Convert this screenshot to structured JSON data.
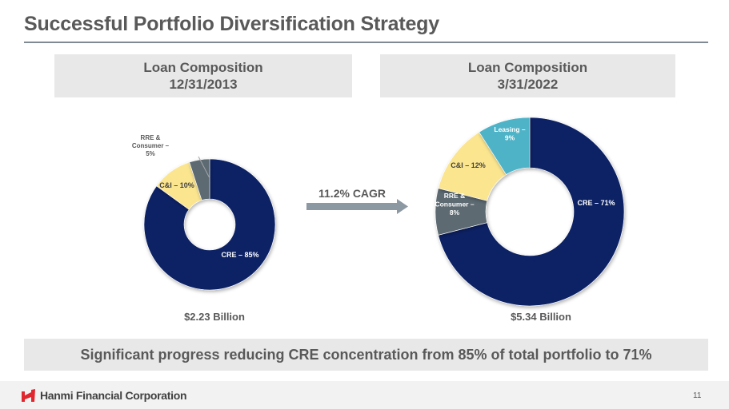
{
  "title": "Successful Portfolio Diversification Strategy",
  "panels": {
    "left": {
      "header_line1": "Loan Composition",
      "header_line2": "12/31/2013",
      "total": "$2.23 Billion"
    },
    "right": {
      "header_line1": "Loan Composition",
      "header_line2": "3/31/2022",
      "total": "$5.34 Billion"
    }
  },
  "cagr_label": "11.2% CAGR",
  "banner": "Significant progress reducing CRE concentration from 85% of total portfolio to 71%",
  "footer": {
    "company": "Hanmi Financial Corporation",
    "page_number": "11"
  },
  "colors": {
    "cre": "#0b2265",
    "ci": "#fbe58f",
    "rre": "#5d6a72",
    "leasing": "#4fb3c8",
    "brand_red": "#e0262e"
  },
  "chart_data": [
    {
      "type": "pie",
      "title": "Loan Composition 12/31/2013",
      "subtitle": "$2.23 Billion",
      "categories": [
        "CRE",
        "C&I",
        "RRE & Consumer"
      ],
      "values": [
        85,
        10,
        5
      ],
      "unit": "%",
      "labels": [
        "CRE – 85%",
        "C&I – 10%",
        "RRE & Consumer – 5%"
      ],
      "donut": true
    },
    {
      "type": "pie",
      "title": "Loan Composition 3/31/2022",
      "subtitle": "$5.34 Billion",
      "categories": [
        "CRE",
        "RRE & Consumer",
        "C&I",
        "Leasing"
      ],
      "values": [
        71,
        8,
        12,
        9
      ],
      "unit": "%",
      "labels": [
        "CRE – 71%",
        "RRE & Consumer – 8%",
        "C&I – 12%",
        "Leasing – 9%"
      ],
      "donut": true
    }
  ]
}
